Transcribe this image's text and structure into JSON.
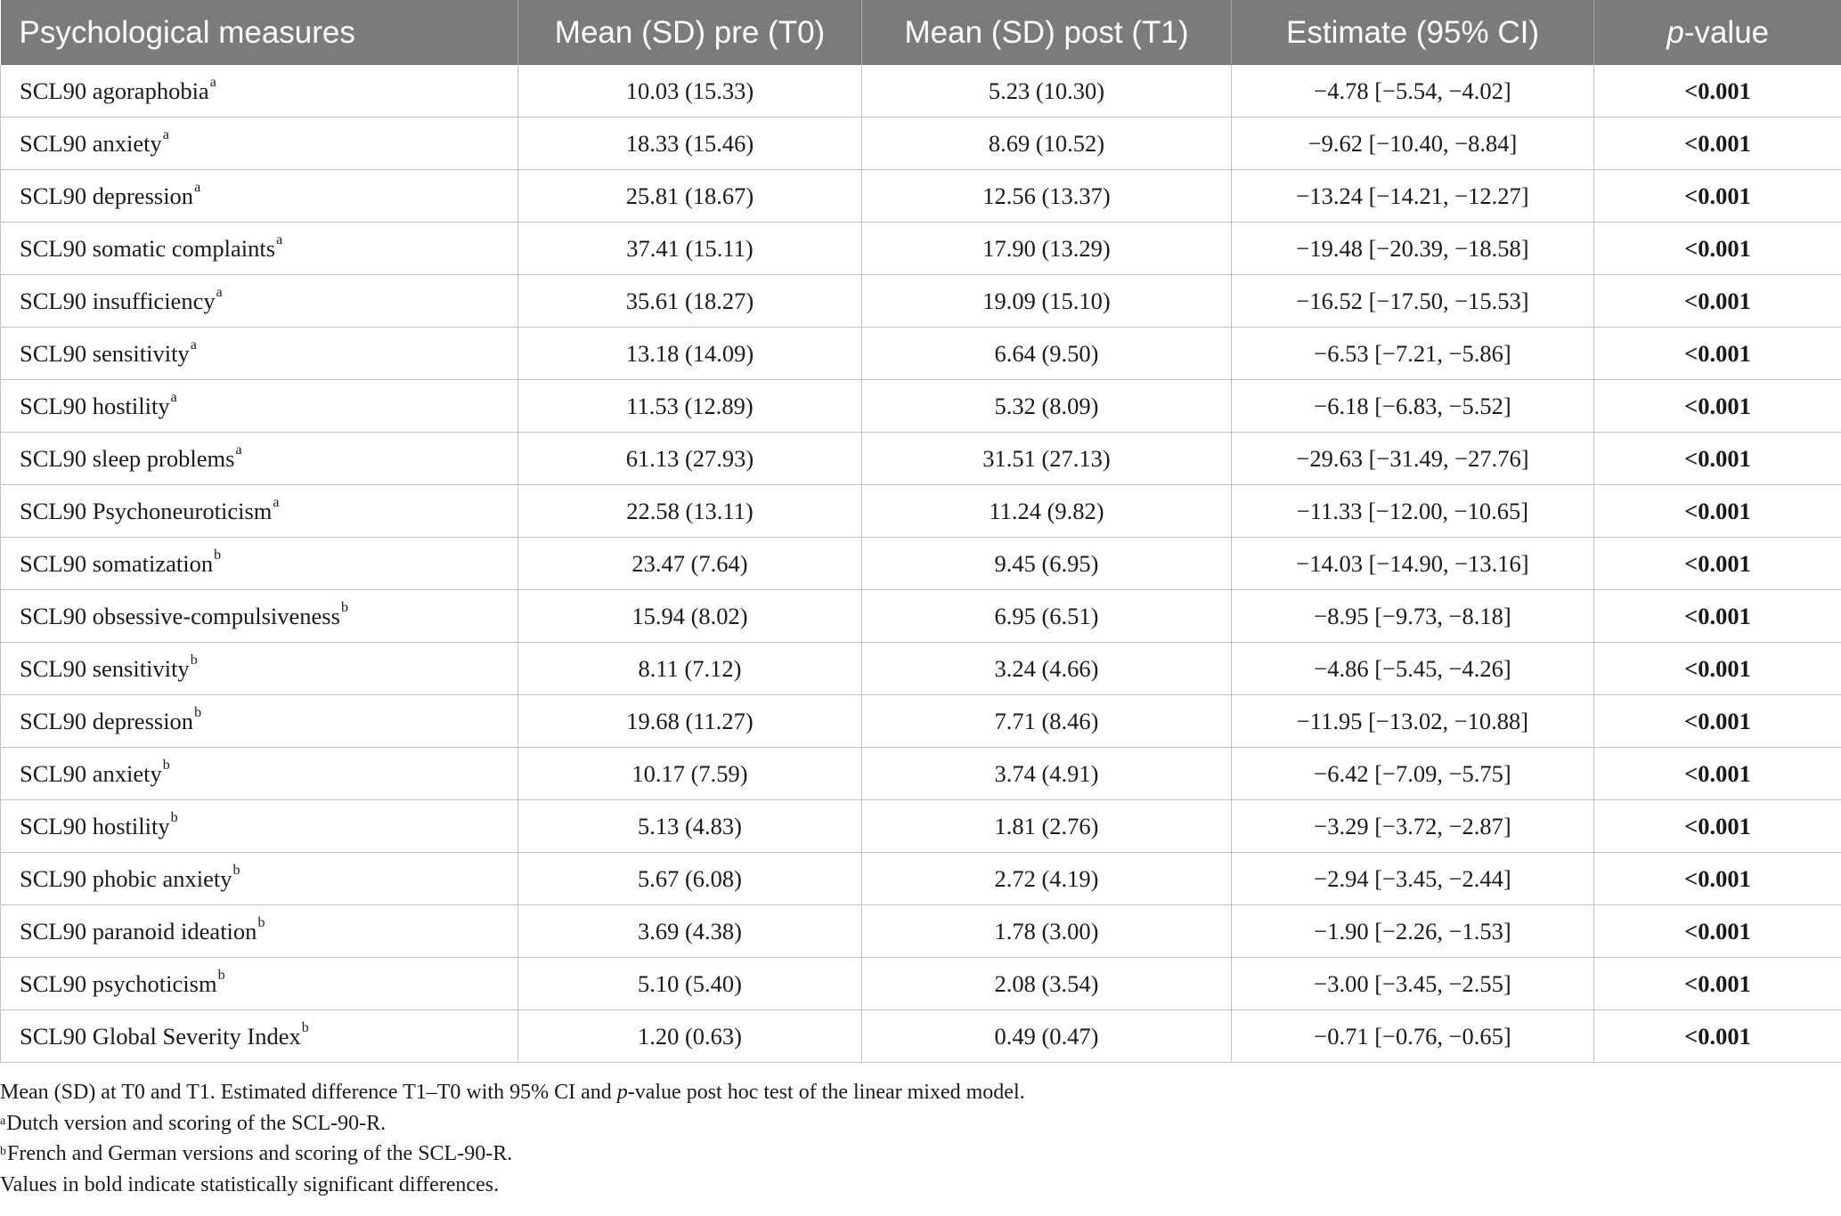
{
  "table": {
    "headers": {
      "measure": "Psychological measures",
      "pre": "Mean (SD) pre (T0)",
      "post": "Mean (SD) post (T1)",
      "estimate": "Estimate (95% CI)",
      "p_italic": "p",
      "p_rest": "-value"
    },
    "rows": [
      {
        "name": "SCL90 agoraphobia",
        "sup": "a",
        "pre": "10.03 (15.33)",
        "post": "5.23 (10.30)",
        "estimate": "−4.78 [−5.54, −4.02]",
        "p": "<0.001"
      },
      {
        "name": "SCL90 anxiety",
        "sup": "a",
        "pre": "18.33 (15.46)",
        "post": "8.69 (10.52)",
        "estimate": "−9.62 [−10.40, −8.84]",
        "p": "<0.001"
      },
      {
        "name": "SCL90 depression",
        "sup": "a",
        "pre": "25.81 (18.67)",
        "post": "12.56 (13.37)",
        "estimate": "−13.24 [−14.21, −12.27]",
        "p": "<0.001"
      },
      {
        "name": "SCL90 somatic complaints",
        "sup": "a",
        "pre": "37.41 (15.11)",
        "post": "17.90 (13.29)",
        "estimate": "−19.48 [−20.39, −18.58]",
        "p": "<0.001"
      },
      {
        "name": "SCL90 insufficiency",
        "sup": "a",
        "pre": "35.61 (18.27)",
        "post": "19.09 (15.10)",
        "estimate": "−16.52 [−17.50, −15.53]",
        "p": "<0.001"
      },
      {
        "name": "SCL90 sensitivity",
        "sup": "a",
        "pre": "13.18 (14.09)",
        "post": "6.64 (9.50)",
        "estimate": "−6.53 [−7.21, −5.86]",
        "p": "<0.001"
      },
      {
        "name": "SCL90 hostility",
        "sup": "a",
        "pre": "11.53 (12.89)",
        "post": "5.32 (8.09)",
        "estimate": "−6.18 [−6.83, −5.52]",
        "p": "<0.001"
      },
      {
        "name": "SCL90 sleep problems",
        "sup": "a",
        "pre": "61.13 (27.93)",
        "post": "31.51 (27.13)",
        "estimate": "−29.63 [−31.49, −27.76]",
        "p": "<0.001"
      },
      {
        "name": "SCL90 Psychoneuroticism",
        "sup": "a",
        "pre": "22.58 (13.11)",
        "post": "11.24 (9.82)",
        "estimate": "−11.33 [−12.00, −10.65]",
        "p": "<0.001"
      },
      {
        "name": "SCL90 somatization",
        "sup": "b",
        "pre": "23.47 (7.64)",
        "post": "9.45 (6.95)",
        "estimate": "−14.03 [−14.90, −13.16]",
        "p": "<0.001"
      },
      {
        "name": "SCL90 obsessive-compulsiveness",
        "sup": "b",
        "pre": "15.94 (8.02)",
        "post": "6.95 (6.51)",
        "estimate": "−8.95 [−9.73, −8.18]",
        "p": "<0.001"
      },
      {
        "name": "SCL90 sensitivity",
        "sup": "b",
        "pre": "8.11 (7.12)",
        "post": "3.24 (4.66)",
        "estimate": "−4.86 [−5.45, −4.26]",
        "p": "<0.001"
      },
      {
        "name": "SCL90 depression",
        "sup": "b",
        "pre": "19.68 (11.27)",
        "post": "7.71 (8.46)",
        "estimate": "−11.95 [−13.02, −10.88]",
        "p": "<0.001"
      },
      {
        "name": "SCL90 anxiety",
        "sup": "b",
        "pre": "10.17 (7.59)",
        "post": "3.74 (4.91)",
        "estimate": "−6.42 [−7.09, −5.75]",
        "p": "<0.001"
      },
      {
        "name": "SCL90 hostility",
        "sup": "b",
        "pre": "5.13 (4.83)",
        "post": "1.81 (2.76)",
        "estimate": "−3.29 [−3.72, −2.87]",
        "p": "<0.001"
      },
      {
        "name": "SCL90 phobic anxiety",
        "sup": "b",
        "pre": "5.67 (6.08)",
        "post": "2.72 (4.19)",
        "estimate": "−2.94 [−3.45, −2.44]",
        "p": "<0.001"
      },
      {
        "name": "SCL90 paranoid ideation",
        "sup": "b",
        "pre": "3.69 (4.38)",
        "post": "1.78 (3.00)",
        "estimate": "−1.90 [−2.26, −1.53]",
        "p": "<0.001"
      },
      {
        "name": "SCL90 psychoticism",
        "sup": "b",
        "pre": "5.10 (5.40)",
        "post": "2.08 (3.54)",
        "estimate": "−3.00 [−3.45, −2.55]",
        "p": "<0.001"
      },
      {
        "name": "SCL90 Global Severity Index",
        "sup": "b",
        "pre": "1.20 (0.63)",
        "post": "0.49 (0.47)",
        "estimate": "−0.71 [−0.76, −0.65]",
        "p": "<0.001"
      }
    ]
  },
  "notes": {
    "line1_a": "Mean (SD) at T0 and T1. Estimated difference T1–T0 with 95% CI and ",
    "line1_italic": "p",
    "line1_b": "-value post hoc test of the linear mixed model.",
    "fn_a_mark": "a",
    "fn_a_text": "Dutch version and scoring of the SCL-90-R.",
    "fn_b_mark": "b",
    "fn_b_text": "French and German versions and scoring of the SCL-90-R.",
    "bold_note": "Values in bold indicate statistically significant differences."
  },
  "colors": {
    "header_bg": "#7b7b7b",
    "header_text": "#ffffff",
    "grid": "#c4c4c4"
  }
}
